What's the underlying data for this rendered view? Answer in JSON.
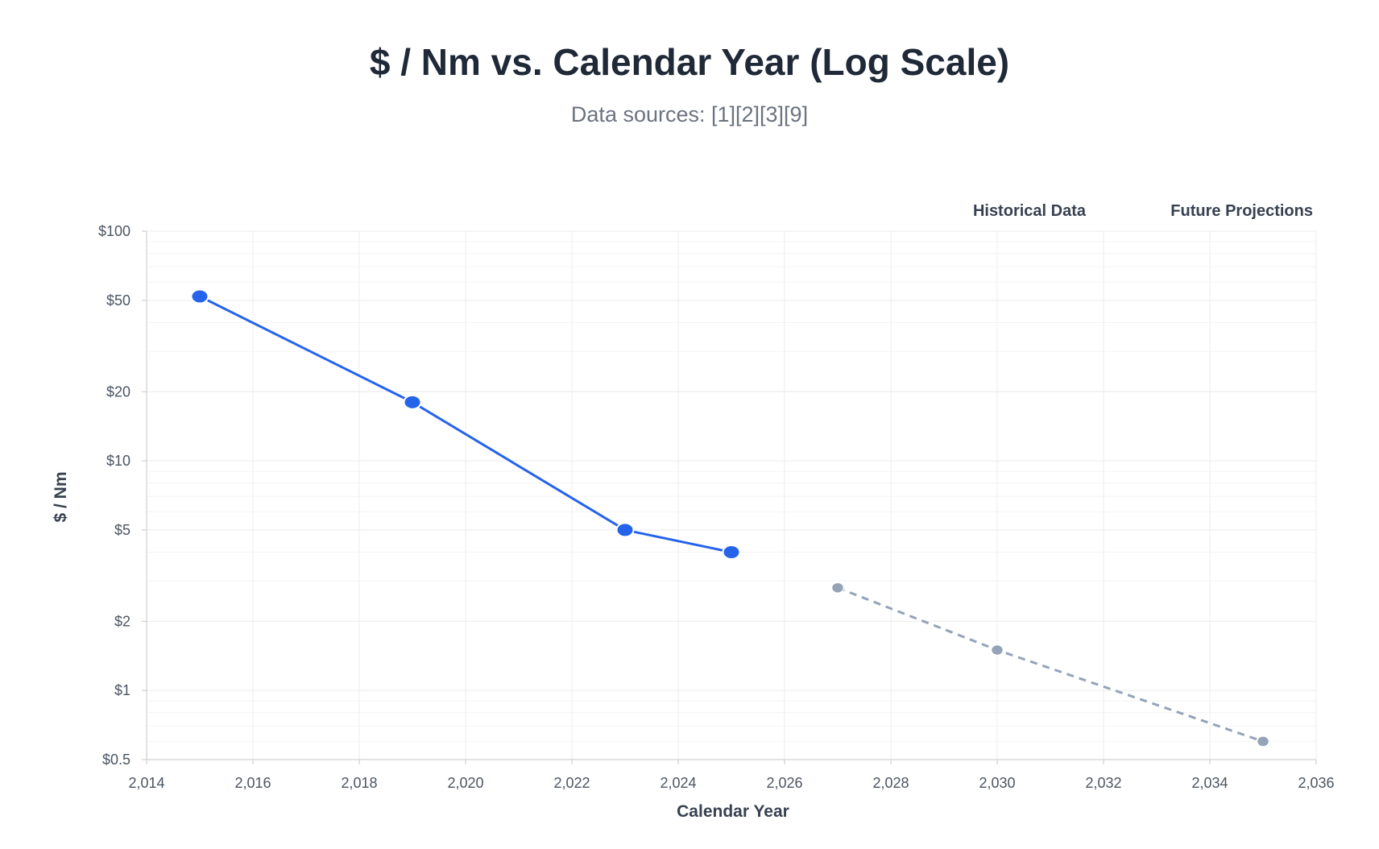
{
  "chart_data": {
    "type": "line",
    "title": "$ / Nm vs. Calendar Year (Log Scale)",
    "subtitle": "Data sources: [1][2][3][9]",
    "xlabel": "Calendar Year",
    "ylabel": "$ / Nm",
    "xlim": [
      2014,
      2036
    ],
    "ylim": [
      0.5,
      100
    ],
    "y_scale": "log",
    "grid": true,
    "legend_position": "top-right",
    "x_ticks": [
      "2,014",
      "2,016",
      "2,018",
      "2,020",
      "2,022",
      "2,024",
      "2,026",
      "2,028",
      "2,030",
      "2,032",
      "2,034",
      "2,036"
    ],
    "y_ticks": [
      "$0.5",
      "$1",
      "$2",
      "$5",
      "$10",
      "$20",
      "$50",
      "$100"
    ],
    "series": [
      {
        "name": "Historical Data",
        "color": "#2563eb",
        "line_style": "solid",
        "points": [
          {
            "x": 2015,
            "y": 52
          },
          {
            "x": 2019,
            "y": 18
          },
          {
            "x": 2023,
            "y": 5
          },
          {
            "x": 2025,
            "y": 4
          }
        ]
      },
      {
        "name": "Future Projections",
        "color": "#94a3b8",
        "line_style": "dashed",
        "points": [
          {
            "x": 2027,
            "y": 2.8
          },
          {
            "x": 2030,
            "y": 1.5
          },
          {
            "x": 2035,
            "y": 0.6
          }
        ]
      }
    ]
  }
}
